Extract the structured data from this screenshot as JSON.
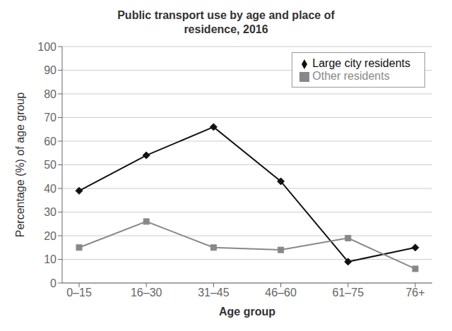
{
  "chart_data": {
    "type": "line",
    "title": "Public transport use by age and place of\nresidence, 2016",
    "xlabel": "Age group",
    "ylabel": "Percentage (%) of age group",
    "categories": [
      "0–15",
      "16–30",
      "31–45",
      "46–60",
      "61–75",
      "76+"
    ],
    "series": [
      {
        "name": "Large city residents",
        "color": "#111111",
        "marker": "diamond",
        "values": [
          39,
          54,
          66,
          43,
          9,
          15
        ]
      },
      {
        "name": "Other residents",
        "color": "#888888",
        "marker": "square",
        "values": [
          15,
          26,
          15,
          14,
          19,
          6
        ]
      }
    ],
    "ylim": [
      0,
      100
    ],
    "yticks": [
      0,
      10,
      20,
      30,
      40,
      50,
      60,
      70,
      80,
      90,
      100
    ],
    "grid": true,
    "legend": "upper right"
  }
}
